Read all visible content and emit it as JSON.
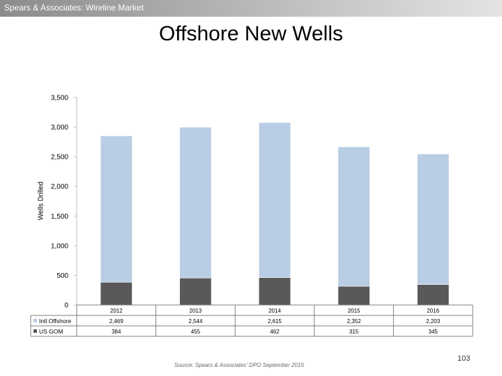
{
  "header": {
    "text": "Spears & Associates:  Wireline Market"
  },
  "slide": {
    "page_number": "103",
    "source": "Source:  Spears & Associates' DPO September 2015"
  },
  "colors": {
    "intl_offshore": "#b9cde4",
    "us_gom": "#595959",
    "header_bar": "#9e9e9e"
  },
  "chart_data": {
    "type": "bar",
    "stacked": true,
    "title": "Offshore New Wells",
    "ylabel": "Wells Drilled",
    "xlabel": "",
    "ylim": [
      0,
      3500
    ],
    "yticks": [
      "0",
      "500",
      "1,000",
      "1,500",
      "2,000",
      "2,500",
      "3,000",
      "3,500"
    ],
    "categories": [
      "2012",
      "2013",
      "2014",
      "2015",
      "2016"
    ],
    "series": [
      {
        "name": "US GOM",
        "values": [
          384,
          455,
          462,
          315,
          345
        ],
        "labels": [
          "384",
          "455",
          "462",
          "315",
          "345"
        ],
        "color": "#595959"
      },
      {
        "name": "Intl Offshore",
        "values": [
          2469,
          2544,
          2615,
          2352,
          2203
        ],
        "labels": [
          "2,469",
          "2,544",
          "2,615",
          "2,352",
          "2,203"
        ],
        "color": "#b9cde4"
      }
    ],
    "data_table": true,
    "grid": false
  }
}
